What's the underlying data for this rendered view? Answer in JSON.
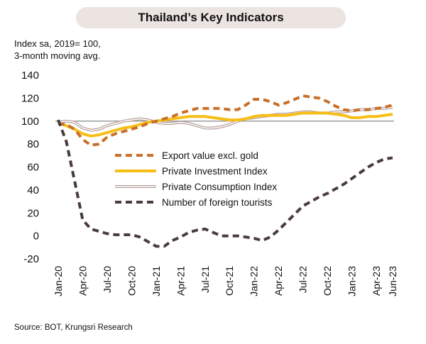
{
  "header": {
    "title": "Thailand’s Key Indicators"
  },
  "units_note": {
    "line1": "Index sa, 2019= 100,",
    "line2": "3-month moving avg."
  },
  "source": "Source: BOT, Krungsri Research",
  "colors": {
    "export": "#c8702a",
    "investment": "#f7be16",
    "consumption": "#b69f9b",
    "tourists": "#4a3c3c",
    "baseline": "#8a8a8a",
    "title_bg": "#ece4e1"
  },
  "chart_data": {
    "type": "line",
    "ylim": [
      -20,
      140
    ],
    "yticks": [
      140,
      120,
      100,
      80,
      60,
      40,
      20,
      0,
      -20
    ],
    "reference_line": 100,
    "grid": false,
    "legend_position": "center",
    "xtick_labels": [
      "Jan-20",
      "Apr-20",
      "Jul-20",
      "Oct-20",
      "Jan-21",
      "Apr-21",
      "Jul-21",
      "Oct-21",
      "Jan-22",
      "Apr-22",
      "Jul-22",
      "Oct-22",
      "Jan-23",
      "Apr-23",
      "Jun-23"
    ],
    "x": [
      "Jan-20",
      "Feb-20",
      "Mar-20",
      "Apr-20",
      "May-20",
      "Jun-20",
      "Jul-20",
      "Aug-20",
      "Sep-20",
      "Oct-20",
      "Nov-20",
      "Dec-20",
      "Jan-21",
      "Feb-21",
      "Mar-21",
      "Apr-21",
      "May-21",
      "Jun-21",
      "Jul-21",
      "Aug-21",
      "Sep-21",
      "Oct-21",
      "Nov-21",
      "Dec-21",
      "Jan-22",
      "Feb-22",
      "Mar-22",
      "Apr-22",
      "May-22",
      "Jun-22",
      "Jul-22",
      "Aug-22",
      "Sep-22",
      "Oct-22",
      "Nov-22",
      "Dec-22",
      "Jan-23",
      "Feb-23",
      "Mar-23",
      "Apr-23",
      "May-23",
      "Jun-23"
    ],
    "series": [
      {
        "name": "Export value excl. gold",
        "style": "dashed-thick",
        "values": [
          98,
          97,
          93,
          84,
          79,
          80,
          86,
          89,
          91,
          93,
          95,
          98,
          100,
          102,
          104,
          107,
          109,
          111,
          111,
          111,
          111,
          110,
          110,
          114,
          119,
          119,
          117,
          114,
          116,
          119,
          122,
          121,
          120,
          117,
          113,
          110,
          109,
          110,
          110,
          111,
          112,
          114
        ]
      },
      {
        "name": "Private Investment Index",
        "style": "solid-thick",
        "values": [
          98,
          96,
          93,
          89,
          87,
          88,
          90,
          92,
          94,
          95,
          97,
          99,
          100,
          101,
          102,
          103,
          104,
          104,
          104,
          103,
          102,
          101,
          101,
          102,
          104,
          105,
          105,
          105,
          105,
          106,
          107,
          107,
          107,
          107,
          106,
          105,
          103,
          103,
          104,
          104,
          105,
          106
        ]
      },
      {
        "name": "Private Consumption Index",
        "style": "double-thin",
        "values": [
          99,
          100,
          99,
          94,
          92,
          93,
          96,
          98,
          100,
          101,
          102,
          101,
          99,
          98,
          98,
          99,
          98,
          96,
          94,
          94,
          95,
          97,
          100,
          102,
          103,
          104,
          105,
          106,
          106,
          107,
          108,
          108,
          107,
          107,
          108,
          108,
          109,
          110,
          110,
          111,
          111,
          112
        ]
      },
      {
        "name": "Number of foreign tourists",
        "style": "dashed-thick",
        "values": [
          101,
          82,
          48,
          14,
          6,
          4,
          2,
          1,
          1,
          1,
          -1,
          -5,
          -9,
          -9,
          -4,
          -1,
          3,
          5,
          6,
          3,
          0,
          0,
          0,
          -1,
          -2,
          -4,
          -1,
          5,
          12,
          19,
          26,
          30,
          34,
          37,
          41,
          45,
          50,
          55,
          60,
          64,
          67,
          68
        ]
      }
    ]
  }
}
